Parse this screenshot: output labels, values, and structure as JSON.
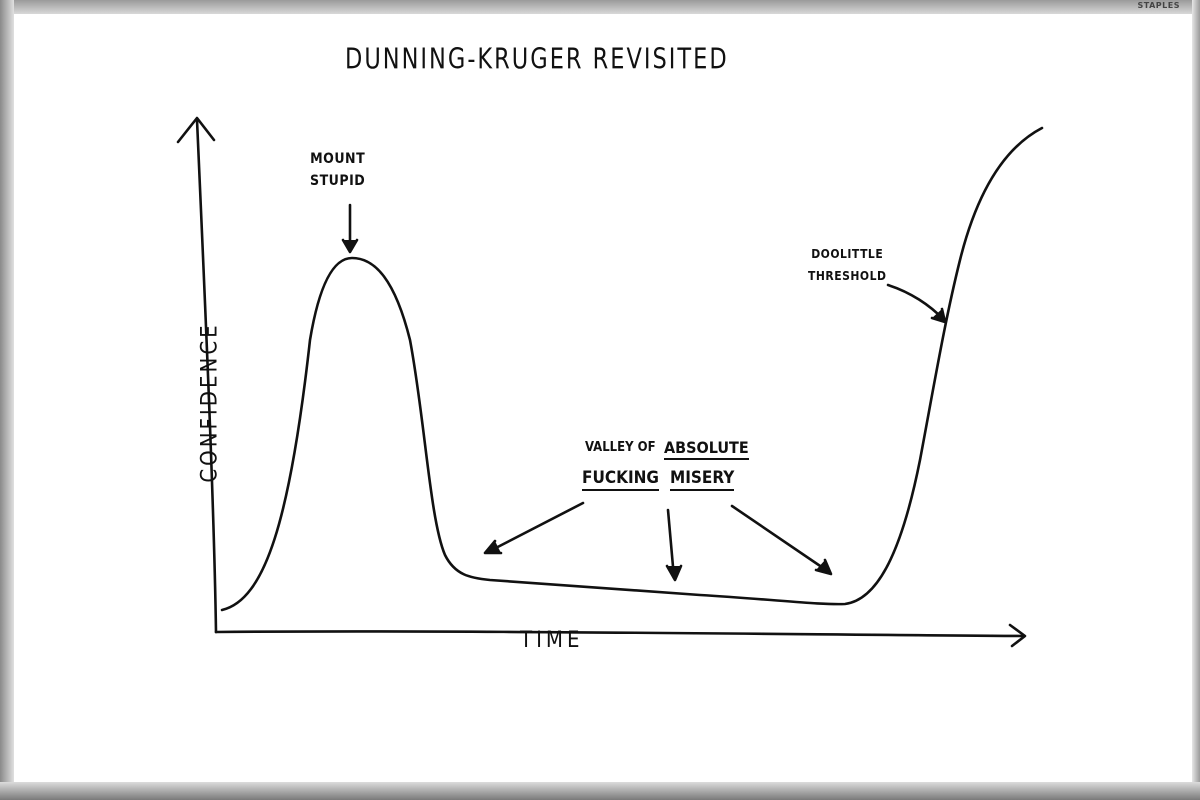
{
  "title": "Dunning-Kruger Revisited",
  "axes": {
    "y_label": "Confidence",
    "x_label": "Time"
  },
  "annotations": {
    "peak": {
      "line1": "Mount",
      "line2": "Stupid"
    },
    "threshold": {
      "line1": "Doolittle",
      "line2": "Threshold"
    },
    "valley": {
      "part1": "Valley of",
      "part2": "Absolute",
      "part3": "Fucking",
      "part4": "Misery"
    }
  },
  "whiteboard_logo": "STAPLES",
  "colors": {
    "ink": "#111111",
    "board": "#ffffff",
    "frame": "#9a9a9a"
  }
}
